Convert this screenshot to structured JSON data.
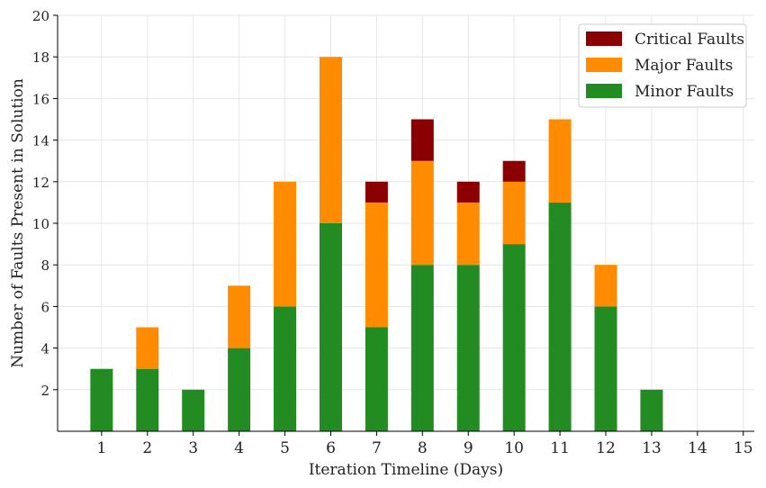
{
  "chart_data": {
    "type": "bar",
    "stacked": true,
    "categories": [
      "1",
      "2",
      "3",
      "4",
      "5",
      "6",
      "7",
      "8",
      "9",
      "10",
      "11",
      "12",
      "13",
      "14",
      "15"
    ],
    "series": [
      {
        "name": "Minor Faults",
        "color": "#228b22",
        "values": [
          3,
          3,
          2,
          4,
          6,
          10,
          5,
          8,
          8,
          9,
          11,
          6,
          2,
          0,
          0
        ]
      },
      {
        "name": "Major Faults",
        "color": "#ff8c00",
        "values": [
          0,
          2,
          0,
          3,
          6,
          8,
          6,
          5,
          3,
          3,
          4,
          2,
          0,
          0,
          0
        ]
      },
      {
        "name": "Critical Faults",
        "color": "#8b0000",
        "values": [
          0,
          0,
          0,
          0,
          0,
          0,
          1,
          2,
          1,
          1,
          0,
          0,
          0,
          0,
          0
        ]
      }
    ],
    "legend_order": [
      "Critical Faults",
      "Major Faults",
      "Minor Faults"
    ],
    "xlabel": "Iteration Timeline (Days)",
    "ylabel": "Number of Faults Present in Solution",
    "ylim": [
      0,
      20
    ],
    "yticks": [
      2,
      4,
      6,
      8,
      10,
      12,
      14,
      16,
      18,
      20
    ],
    "grid": true,
    "legend_position": "top-right"
  }
}
